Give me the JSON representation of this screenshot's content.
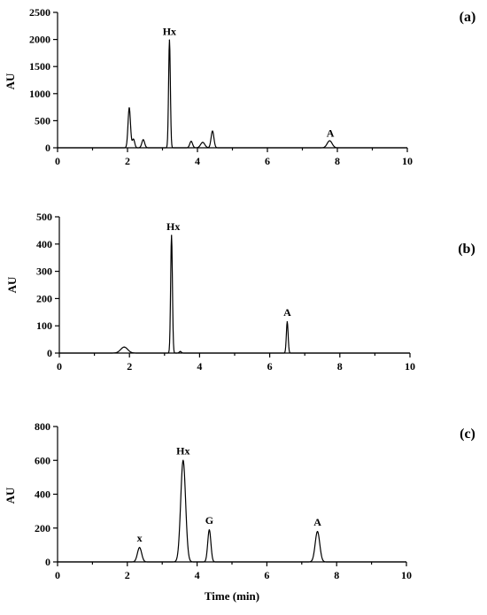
{
  "chart_data": [
    {
      "type": "line",
      "panel_label": "(a)",
      "xlabel": "",
      "ylabel": "AU",
      "xlim": [
        0,
        10
      ],
      "ylim": [
        0,
        2500
      ],
      "xticks": [
        "0",
        "2",
        "4",
        "6",
        "8",
        "10"
      ],
      "yticks": [
        "0",
        "500",
        "1000",
        "1500",
        "2000",
        "2500"
      ],
      "baseline": 0,
      "peaks": [
        {
          "label": "",
          "x": 2.05,
          "height": 740,
          "width": 0.035
        },
        {
          "label": "",
          "x": 2.17,
          "height": 160,
          "width": 0.035
        },
        {
          "label": "",
          "x": 2.45,
          "height": 150,
          "width": 0.04
        },
        {
          "label": "Hx",
          "x": 3.2,
          "height": 1990,
          "width": 0.025
        },
        {
          "label": "",
          "x": 3.82,
          "height": 120,
          "width": 0.04
        },
        {
          "label": "",
          "x": 4.15,
          "height": 100,
          "width": 0.06
        },
        {
          "label": "",
          "x": 4.43,
          "height": 310,
          "width": 0.04
        },
        {
          "label": "A",
          "x": 7.78,
          "height": 130,
          "width": 0.07
        }
      ],
      "annotations": [
        {
          "text": "Hx",
          "x": 3.2,
          "y": 2050
        },
        {
          "text": "A",
          "x": 7.8,
          "y": 170
        }
      ]
    },
    {
      "type": "line",
      "panel_label": "(b)",
      "xlabel": "",
      "ylabel": "AU",
      "xlim": [
        0,
        10
      ],
      "ylim": [
        0,
        500
      ],
      "xticks": [
        "0",
        "2",
        "4",
        "6",
        "8",
        "10"
      ],
      "yticks": [
        "0",
        "100",
        "200",
        "300",
        "400",
        "500"
      ],
      "baseline": 0,
      "peaks": [
        {
          "label": "",
          "x": 1.85,
          "height": 22,
          "width": 0.1
        },
        {
          "label": "Hx",
          "x": 3.2,
          "height": 432,
          "width": 0.025
        },
        {
          "label": "",
          "x": 3.45,
          "height": 6,
          "width": 0.03
        },
        {
          "label": "A",
          "x": 6.5,
          "height": 115,
          "width": 0.025
        }
      ],
      "annotations": [
        {
          "text": "Hx",
          "x": 3.25,
          "y": 445
        },
        {
          "text": "A",
          "x": 6.5,
          "y": 130
        }
      ]
    },
    {
      "type": "line",
      "panel_label": "(c)",
      "xlabel": "Time (min)",
      "ylabel": "AU",
      "xlim": [
        0,
        10
      ],
      "ylim": [
        0,
        800
      ],
      "xticks": [
        "0",
        "2",
        "4",
        "6",
        "8",
        "10"
      ],
      "yticks": [
        "0",
        "200",
        "400",
        "600",
        "800"
      ],
      "baseline": 0,
      "peaks": [
        {
          "label": "x",
          "x": 2.35,
          "height": 85,
          "width": 0.06
        },
        {
          "label": "Hx",
          "x": 3.6,
          "height": 600,
          "width": 0.07
        },
        {
          "label": "G",
          "x": 4.35,
          "height": 190,
          "width": 0.045
        },
        {
          "label": "A",
          "x": 7.45,
          "height": 180,
          "width": 0.065
        }
      ],
      "annotations": [
        {
          "text": "x",
          "x": 2.35,
          "y": 110
        },
        {
          "text": "Hx",
          "x": 3.6,
          "y": 625
        },
        {
          "text": "G",
          "x": 4.35,
          "y": 215
        },
        {
          "text": "A",
          "x": 7.45,
          "y": 205
        }
      ]
    }
  ]
}
